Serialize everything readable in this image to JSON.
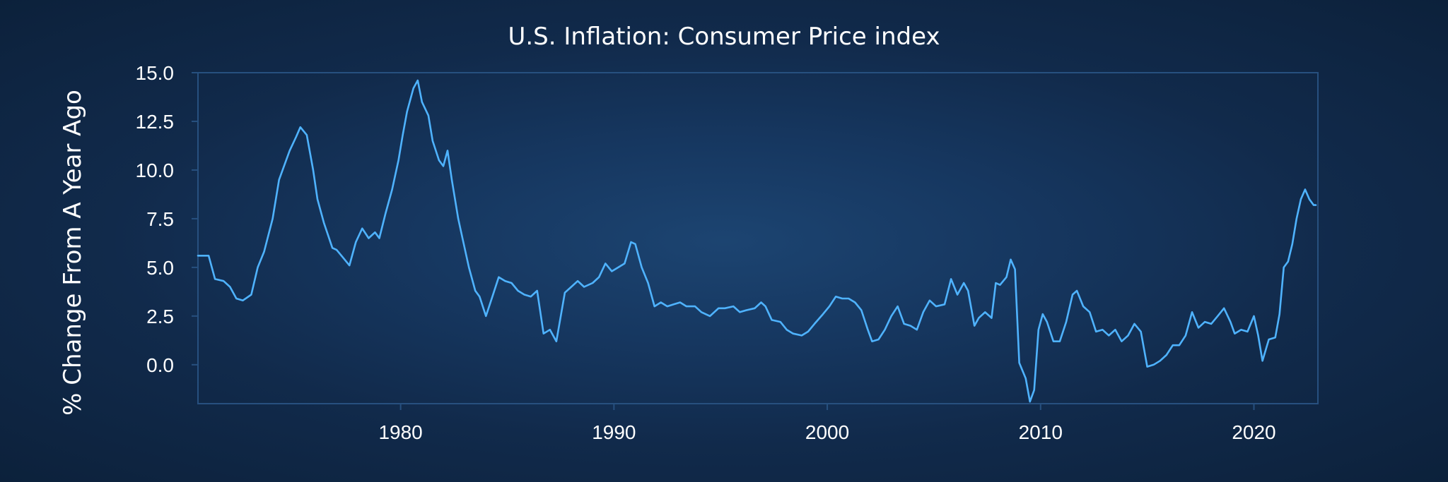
{
  "chart_data": {
    "type": "line",
    "title": "U.S. Inflation: Consumer Price index",
    "ylabel": "% Change From A Year Ago",
    "xlabel": "",
    "xlim": [
      1970.5,
      2023.0
    ],
    "ylim": [
      -2.0,
      15.0
    ],
    "x_ticks": [
      1980,
      1990,
      2000,
      2010,
      2020
    ],
    "x_tick_labels": [
      "1980",
      "1990",
      "2000",
      "2010",
      "2020"
    ],
    "y_ticks": [
      0.0,
      2.5,
      5.0,
      7.5,
      10.0,
      12.5,
      15.0
    ],
    "y_tick_labels": [
      "0.0",
      "2.5",
      "5.0",
      "7.5",
      "10.0",
      "12.5",
      "15.0"
    ],
    "grid": false,
    "colors": {
      "line": "#4fb3ff",
      "frame": "#27507f",
      "text": "#ffffff"
    },
    "series": [
      {
        "points": [
          [
            1970.5,
            5.6
          ],
          [
            1971.0,
            5.6
          ],
          [
            1971.3,
            4.4
          ],
          [
            1971.7,
            4.3
          ],
          [
            1972.0,
            4.0
          ],
          [
            1972.3,
            3.4
          ],
          [
            1972.6,
            3.3
          ],
          [
            1973.0,
            3.6
          ],
          [
            1973.3,
            5.0
          ],
          [
            1973.6,
            5.8
          ],
          [
            1974.0,
            7.5
          ],
          [
            1974.3,
            9.5
          ],
          [
            1974.5,
            10.1
          ],
          [
            1974.8,
            11.0
          ],
          [
            1975.1,
            11.7
          ],
          [
            1975.3,
            12.2
          ],
          [
            1975.6,
            11.8
          ],
          [
            1975.9,
            10.0
          ],
          [
            1976.1,
            8.5
          ],
          [
            1976.4,
            7.3
          ],
          [
            1976.8,
            6.0
          ],
          [
            1977.0,
            5.9
          ],
          [
            1977.3,
            5.5
          ],
          [
            1977.6,
            5.1
          ],
          [
            1977.9,
            6.3
          ],
          [
            1978.2,
            7.0
          ],
          [
            1978.5,
            6.5
          ],
          [
            1978.8,
            6.8
          ],
          [
            1979.0,
            6.5
          ],
          [
            1979.3,
            7.8
          ],
          [
            1979.6,
            9.0
          ],
          [
            1979.9,
            10.5
          ],
          [
            1980.1,
            11.8
          ],
          [
            1980.3,
            13.0
          ],
          [
            1980.6,
            14.2
          ],
          [
            1980.8,
            14.6
          ],
          [
            1981.0,
            13.5
          ],
          [
            1981.3,
            12.8
          ],
          [
            1981.5,
            11.5
          ],
          [
            1981.8,
            10.5
          ],
          [
            1982.0,
            10.2
          ],
          [
            1982.2,
            11.0
          ],
          [
            1982.4,
            9.5
          ],
          [
            1982.7,
            7.5
          ],
          [
            1982.9,
            6.5
          ],
          [
            1983.2,
            5.0
          ],
          [
            1983.5,
            3.8
          ],
          [
            1983.7,
            3.5
          ],
          [
            1984.0,
            2.5
          ],
          [
            1984.3,
            3.5
          ],
          [
            1984.6,
            4.5
          ],
          [
            1984.9,
            4.3
          ],
          [
            1985.2,
            4.2
          ],
          [
            1985.5,
            3.8
          ],
          [
            1985.8,
            3.6
          ],
          [
            1986.1,
            3.5
          ],
          [
            1986.4,
            3.8
          ],
          [
            1986.7,
            1.6
          ],
          [
            1987.0,
            1.8
          ],
          [
            1987.3,
            1.2
          ],
          [
            1987.7,
            3.7
          ],
          [
            1988.0,
            4.0
          ],
          [
            1988.3,
            4.3
          ],
          [
            1988.6,
            4.0
          ],
          [
            1989.0,
            4.2
          ],
          [
            1989.3,
            4.5
          ],
          [
            1989.6,
            5.2
          ],
          [
            1989.9,
            4.8
          ],
          [
            1990.2,
            5.0
          ],
          [
            1990.5,
            5.2
          ],
          [
            1990.8,
            6.3
          ],
          [
            1991.0,
            6.2
          ],
          [
            1991.3,
            5.0
          ],
          [
            1991.6,
            4.2
          ],
          [
            1991.9,
            3.0
          ],
          [
            1992.2,
            3.2
          ],
          [
            1992.5,
            3.0
          ],
          [
            1992.8,
            3.1
          ],
          [
            1993.1,
            3.2
          ],
          [
            1993.4,
            3.0
          ],
          [
            1993.8,
            3.0
          ],
          [
            1994.1,
            2.7
          ],
          [
            1994.5,
            2.5
          ],
          [
            1994.9,
            2.9
          ],
          [
            1995.2,
            2.9
          ],
          [
            1995.6,
            3.0
          ],
          [
            1995.9,
            2.7
          ],
          [
            1996.2,
            2.8
          ],
          [
            1996.6,
            2.9
          ],
          [
            1996.9,
            3.2
          ],
          [
            1997.1,
            3.0
          ],
          [
            1997.4,
            2.3
          ],
          [
            1997.8,
            2.2
          ],
          [
            1998.1,
            1.8
          ],
          [
            1998.4,
            1.6
          ],
          [
            1998.8,
            1.5
          ],
          [
            1999.1,
            1.7
          ],
          [
            1999.4,
            2.1
          ],
          [
            1999.8,
            2.6
          ],
          [
            2000.1,
            3.0
          ],
          [
            2000.4,
            3.5
          ],
          [
            2000.7,
            3.4
          ],
          [
            2001.0,
            3.4
          ],
          [
            2001.3,
            3.2
          ],
          [
            2001.6,
            2.8
          ],
          [
            2001.9,
            1.8
          ],
          [
            2002.1,
            1.2
          ],
          [
            2002.4,
            1.3
          ],
          [
            2002.7,
            1.8
          ],
          [
            2003.0,
            2.5
          ],
          [
            2003.3,
            3.0
          ],
          [
            2003.6,
            2.1
          ],
          [
            2003.9,
            2.0
          ],
          [
            2004.2,
            1.8
          ],
          [
            2004.5,
            2.7
          ],
          [
            2004.8,
            3.3
          ],
          [
            2005.1,
            3.0
          ],
          [
            2005.5,
            3.1
          ],
          [
            2005.8,
            4.4
          ],
          [
            2006.1,
            3.6
          ],
          [
            2006.4,
            4.2
          ],
          [
            2006.6,
            3.8
          ],
          [
            2006.9,
            2.0
          ],
          [
            2007.1,
            2.4
          ],
          [
            2007.4,
            2.7
          ],
          [
            2007.7,
            2.4
          ],
          [
            2007.9,
            4.2
          ],
          [
            2008.1,
            4.1
          ],
          [
            2008.4,
            4.5
          ],
          [
            2008.6,
            5.4
          ],
          [
            2008.8,
            4.9
          ],
          [
            2009.0,
            0.1
          ],
          [
            2009.3,
            -0.7
          ],
          [
            2009.5,
            -1.9
          ],
          [
            2009.7,
            -1.3
          ],
          [
            2009.9,
            1.8
          ],
          [
            2010.1,
            2.6
          ],
          [
            2010.3,
            2.2
          ],
          [
            2010.6,
            1.2
          ],
          [
            2010.9,
            1.2
          ],
          [
            2011.2,
            2.2
          ],
          [
            2011.5,
            3.6
          ],
          [
            2011.7,
            3.8
          ],
          [
            2012.0,
            3.0
          ],
          [
            2012.3,
            2.7
          ],
          [
            2012.6,
            1.7
          ],
          [
            2012.9,
            1.8
          ],
          [
            2013.2,
            1.5
          ],
          [
            2013.5,
            1.8
          ],
          [
            2013.8,
            1.2
          ],
          [
            2014.1,
            1.5
          ],
          [
            2014.4,
            2.1
          ],
          [
            2014.7,
            1.7
          ],
          [
            2015.0,
            -0.1
          ],
          [
            2015.3,
            0.0
          ],
          [
            2015.6,
            0.2
          ],
          [
            2015.9,
            0.5
          ],
          [
            2016.2,
            1.0
          ],
          [
            2016.5,
            1.0
          ],
          [
            2016.8,
            1.5
          ],
          [
            2017.1,
            2.7
          ],
          [
            2017.4,
            1.9
          ],
          [
            2017.7,
            2.2
          ],
          [
            2018.0,
            2.1
          ],
          [
            2018.3,
            2.5
          ],
          [
            2018.6,
            2.9
          ],
          [
            2018.9,
            2.2
          ],
          [
            2019.1,
            1.6
          ],
          [
            2019.4,
            1.8
          ],
          [
            2019.7,
            1.7
          ],
          [
            2020.0,
            2.5
          ],
          [
            2020.2,
            1.5
          ],
          [
            2020.4,
            0.2
          ],
          [
            2020.7,
            1.3
          ],
          [
            2021.0,
            1.4
          ],
          [
            2021.2,
            2.6
          ],
          [
            2021.4,
            5.0
          ],
          [
            2021.6,
            5.3
          ],
          [
            2021.8,
            6.2
          ],
          [
            2022.0,
            7.5
          ],
          [
            2022.2,
            8.5
          ],
          [
            2022.4,
            9.0
          ],
          [
            2022.6,
            8.5
          ],
          [
            2022.8,
            8.2
          ],
          [
            2022.9,
            8.2
          ]
        ]
      }
    ]
  }
}
